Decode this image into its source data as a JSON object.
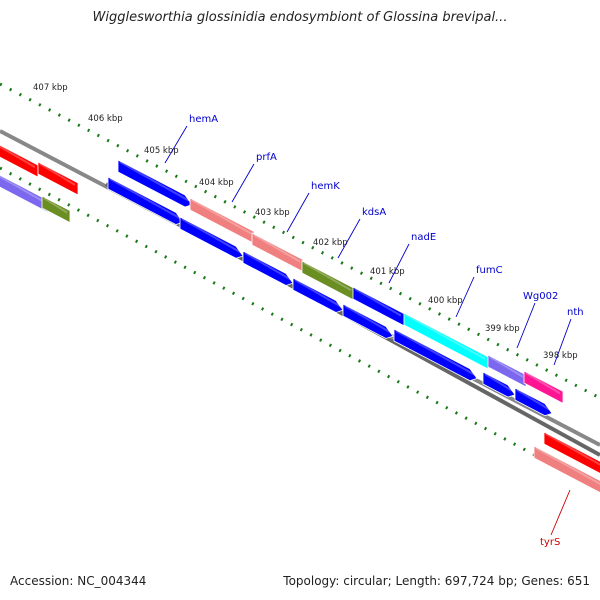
{
  "title": "Wigglesworthia glossinidia endosymbiont of Glossina brevipal...",
  "footer": {
    "accession": "Accession: NC_004344",
    "summary": "Topology: circular; Length: 697,724 bp; Genes: 651"
  },
  "kbp_ticks": [
    "407 kbp",
    "406 kbp",
    "405 kbp",
    "404 kbp",
    "403 kbp",
    "402 kbp",
    "401 kbp",
    "400 kbp",
    "399 kbp",
    "398 kbp"
  ],
  "genes_top": [
    {
      "name": "hemA",
      "color": "#0000cc"
    },
    {
      "name": "prfA",
      "color": "#0000cc"
    },
    {
      "name": "hemK",
      "color": "#0000cc"
    },
    {
      "name": "kdsA",
      "color": "#0000cc"
    },
    {
      "name": "nadE",
      "color": "#0000cc"
    },
    {
      "name": "fumC",
      "color": "#0000cc"
    },
    {
      "name": "Wg002",
      "color": "#0000cc"
    },
    {
      "name": "nth",
      "color": "#0000cc"
    }
  ],
  "genes_bottom": [
    {
      "name": "tyrS",
      "color": "#cc0000"
    }
  ],
  "colors": {
    "blue": "#0000ff",
    "pink": "#f08080",
    "olive": "#6b8e23",
    "cyan": "#00ffff",
    "purple": "#7b68ee",
    "magenta": "#ff1493",
    "red": "#ff0000",
    "backbone": "#888888",
    "ticks": "#1a7a1a"
  }
}
